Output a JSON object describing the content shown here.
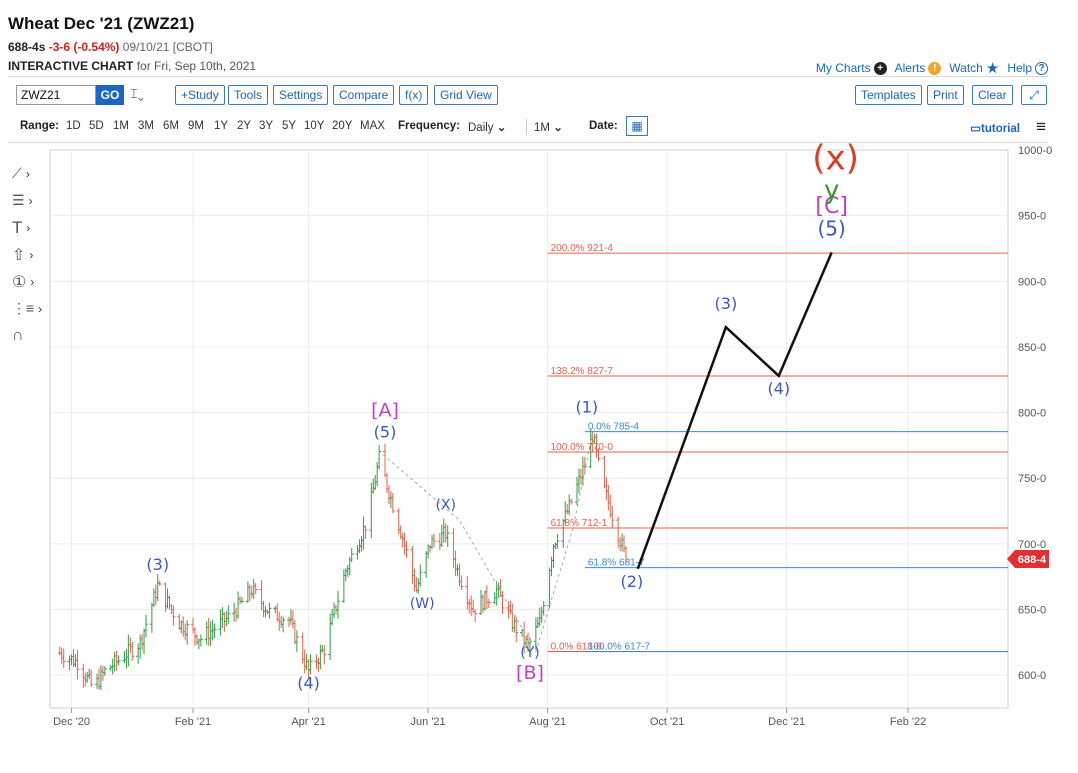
{
  "header": {
    "title": "Wheat Dec '21 (ZWZ21)",
    "last": "688-4s",
    "change": "-3-6 (-0.54%)",
    "date_exch": "09/10/21 [CBOT]",
    "interactive_label": "INTERACTIVE CHART",
    "interactive_for": "for Fri, Sep 10th, 2021"
  },
  "top_links": {
    "my_charts": "My Charts",
    "alerts": "Alerts",
    "watch": "Watch",
    "help": "Help"
  },
  "toolbar": {
    "symbol": "ZWZ21",
    "go": "GO",
    "study": "+Study",
    "tools": "Tools",
    "settings": "Settings",
    "compare": "Compare",
    "fx": "f(x)",
    "grid_view": "Grid View",
    "templates": "Templates",
    "print": "Print",
    "clear": "Clear"
  },
  "range_bar": {
    "range_label": "Range:",
    "ranges": [
      "1D",
      "5D",
      "1M",
      "3M",
      "6M",
      "9M",
      "1Y",
      "2Y",
      "3Y",
      "5Y",
      "10Y",
      "20Y",
      "MAX"
    ],
    "frequency_label": "Frequency:",
    "frequency": "Daily",
    "interval": "1M",
    "date_label": "Date:",
    "tutorial": "tutorial"
  },
  "colors": {
    "up": "#2f9e46",
    "down": "#e8604c",
    "fib_red": "#e8604c",
    "fib_blue": "#3a8ad0",
    "price_tag": "#e03030",
    "wave_blue": "#3b57c9",
    "wave_magenta": "#c43fc4"
  },
  "chart_data": {
    "type": "ohlc",
    "x_tick_labels": [
      "Dec '20",
      "Feb '21",
      "Apr '21",
      "Jun '21",
      "Aug '21",
      "Oct '21",
      "Dec '21",
      "Feb '22"
    ],
    "y_tick_labels": [
      "600-0",
      "650-0",
      "700-0",
      "750-0",
      "800-0",
      "850-0",
      "900-0",
      "950-0",
      "1000-0"
    ],
    "ylim": [
      575,
      1000
    ],
    "current_price_label": "688-4",
    "current_price": 688.5,
    "price_path": [
      [
        "2020-11-25",
        617
      ],
      [
        "2020-12-04",
        610
      ],
      [
        "2020-12-12",
        590
      ],
      [
        "2020-12-18",
        603
      ],
      [
        "2021-01-05",
        625
      ],
      [
        "2021-01-14",
        668
      ],
      [
        "2021-01-25",
        640
      ],
      [
        "2021-02-05",
        628
      ],
      [
        "2021-02-20",
        645
      ],
      [
        "2021-03-03",
        665
      ],
      [
        "2021-03-12",
        648
      ],
      [
        "2021-03-22",
        642
      ],
      [
        "2021-04-01",
        603
      ],
      [
        "2021-04-09",
        620
      ],
      [
        "2021-04-20",
        680
      ],
      [
        "2021-05-01",
        718
      ],
      [
        "2021-05-07",
        765
      ],
      [
        "2021-05-12",
        740
      ],
      [
        "2021-05-19",
        705
      ],
      [
        "2021-05-26",
        665
      ],
      [
        "2021-06-02",
        700
      ],
      [
        "2021-06-10",
        708
      ],
      [
        "2021-06-16",
        680
      ],
      [
        "2021-06-24",
        650
      ],
      [
        "2021-07-06",
        665
      ],
      [
        "2021-07-14",
        640
      ],
      [
        "2021-07-22",
        622
      ],
      [
        "2021-07-28",
        640
      ],
      [
        "2021-08-04",
        700
      ],
      [
        "2021-08-12",
        728
      ],
      [
        "2021-08-20",
        760
      ],
      [
        "2021-08-24",
        783
      ],
      [
        "2021-08-29",
        745
      ],
      [
        "2021-09-04",
        718
      ],
      [
        "2021-09-10",
        688.5
      ]
    ],
    "projection_path": [
      [
        "2021-09-16",
        681
      ],
      [
        "2021-10-31",
        865
      ],
      [
        "2021-11-27",
        828
      ],
      [
        "2021-12-24",
        922
      ]
    ],
    "corrective_lines": [
      [
        [
          "2021-05-09",
          768
        ],
        [
          "2021-06-17",
          718
        ],
        [
          "2021-07-26",
          618
        ]
      ],
      [
        [
          "2021-07-26",
          618
        ],
        [
          "2021-08-14",
          712
        ],
        [
          "2021-08-24",
          785
        ]
      ]
    ],
    "fib_levels": [
      {
        "label": "200.0% 921-4",
        "value": 921.5,
        "color": "red",
        "x_start": "2021-08-01",
        "x_end": "2022-03-24"
      },
      {
        "label": "138.2% 827-7",
        "value": 827.9,
        "color": "red",
        "x_start": "2021-08-01",
        "x_end": "2022-03-24"
      },
      {
        "label": "0.0% 785-4",
        "value": 785.5,
        "color": "blue",
        "x_start": "2021-08-20",
        "x_end": "2022-03-24"
      },
      {
        "label": "100.0% 770-0",
        "value": 770,
        "color": "red",
        "x_start": "2021-08-01",
        "x_end": "2022-03-24"
      },
      {
        "label": "61.8% 712-1",
        "value": 712.1,
        "color": "red",
        "x_start": "2021-08-01",
        "x_end": "2022-03-24"
      },
      {
        "label": "61.8% 681-7",
        "value": 681.9,
        "color": "blue",
        "x_start": "2021-08-20",
        "x_end": "2022-03-24"
      },
      {
        "label": "0.0% 618-0",
        "value": 618,
        "color": "red",
        "x_start": "2021-08-01",
        "x_end": "2022-03-24"
      },
      {
        "label": "100.0% 617-7",
        "value": 617.9,
        "color": "blue",
        "x_start": "2021-08-20",
        "x_end": "2022-03-24"
      }
    ],
    "wave_labels": [
      {
        "text": "(3)",
        "x": "2021-01-14",
        "y": 680,
        "color": "blue"
      },
      {
        "text": "(4)",
        "x": "2021-04-01",
        "y": 590,
        "color": "blue"
      },
      {
        "text": "[A]",
        "x": "2021-05-10",
        "y": 797,
        "color": "magenta",
        "size": 19
      },
      {
        "text": "(5)",
        "x": "2021-05-10",
        "y": 781,
        "color": "blue"
      },
      {
        "text": "(X)",
        "x": "2021-06-10",
        "y": 726,
        "color": "blue",
        "size": 14
      },
      {
        "text": "(W)",
        "x": "2021-05-29",
        "y": 651,
        "color": "blue",
        "size": 14
      },
      {
        "text": "(Y)",
        "x": "2021-07-23",
        "y": 614,
        "color": "blue",
        "size": 14
      },
      {
        "text": "[B]",
        "x": "2021-07-23",
        "y": 597,
        "color": "magenta",
        "size": 19
      },
      {
        "text": "(1)",
        "x": "2021-08-21",
        "y": 800,
        "color": "blue"
      },
      {
        "text": "(2)",
        "x": "2021-09-13",
        "y": 667,
        "color": "blue"
      },
      {
        "text": "(3)",
        "x": "2021-10-31",
        "y": 879,
        "color": "blue"
      },
      {
        "text": "(4)",
        "x": "2021-11-27",
        "y": 814,
        "color": "blue"
      },
      {
        "text": "(5)",
        "x": "2021-12-24",
        "y": 935,
        "color": "blue",
        "size": 20
      },
      {
        "text": "[C]",
        "x": "2021-12-24",
        "y": 952,
        "color": "magenta",
        "size": 22
      },
      {
        "text": "y",
        "x": "2021-12-24",
        "y": 963,
        "color": "green",
        "size": 26
      },
      {
        "text": "(x)",
        "x": "2021-12-26",
        "y": 985,
        "color": "red",
        "size": 34
      }
    ]
  }
}
